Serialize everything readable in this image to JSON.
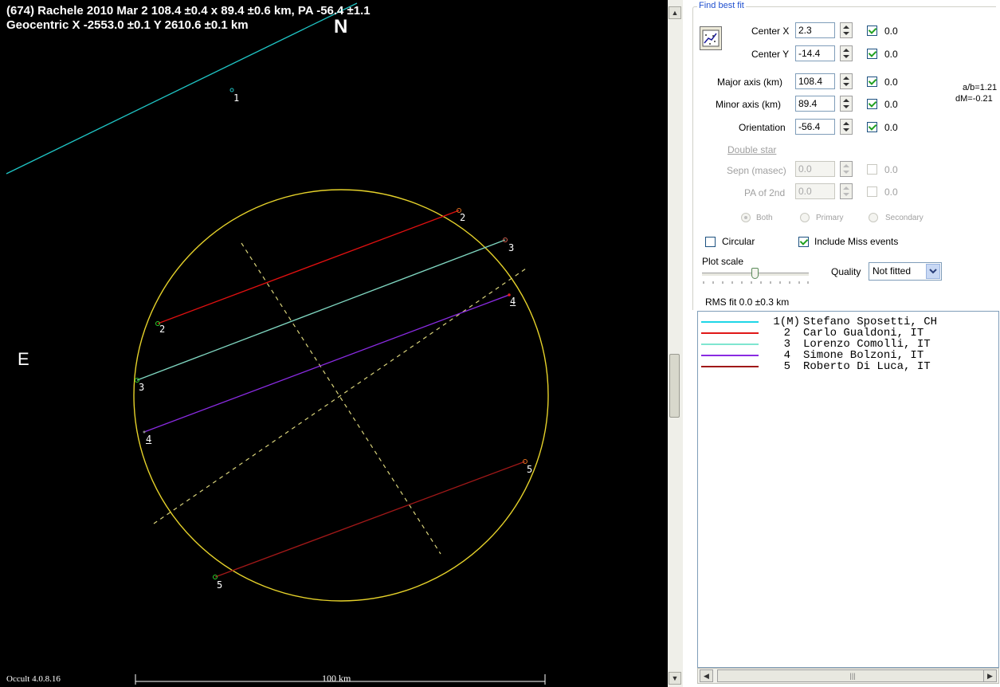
{
  "plot": {
    "title_line1": "(674) Rachele  2010 Mar 2   108.4 ±0.4 x 89.4 ±0.6 km, PA -56.4 ±1.1",
    "title_line2": "Geocentric X -2553.0 ±0.1  Y 2610.6 ±0.1 km",
    "north_label": "N",
    "east_label": "E",
    "version": "Occult 4.0.8.16",
    "scale_label": "100 km",
    "chords": [
      {
        "id": "1",
        "color": "#1fc4c4"
      },
      {
        "id": "2",
        "color": "#e01010"
      },
      {
        "id": "3",
        "color": "#7fd6c0"
      },
      {
        "id": "4",
        "color": "#8a2be2"
      },
      {
        "id": "5",
        "color": "#a01818"
      }
    ],
    "ellipse_color": "#e6d22a",
    "axis_color": "#d8d27a"
  },
  "panel": {
    "group_title": "Find best fit",
    "center_x": {
      "label": "Center X",
      "value": "2.3",
      "check_label": "0.0",
      "checked": true
    },
    "center_y": {
      "label": "Center Y",
      "value": "-14.4",
      "check_label": "0.0",
      "checked": true
    },
    "major_axis": {
      "label": "Major axis (km)",
      "value": "108.4",
      "check_label": "0.0",
      "checked": true
    },
    "minor_axis": {
      "label": "Minor axis (km)",
      "value": "89.4",
      "check_label": "0.0",
      "checked": true
    },
    "orientation": {
      "label": "Orientation",
      "value": "-56.4",
      "check_label": "0.0",
      "checked": true
    },
    "ab_ratio": "a/b=1.21",
    "dm": "dM=-0.21",
    "double_star": {
      "heading": "Double star",
      "sepn": {
        "label": "Sepn (masec)",
        "value": "0.0",
        "check_label": "0.0"
      },
      "pa2": {
        "label": "PA of 2nd",
        "value": "0.0",
        "check_label": "0.0"
      },
      "radio_both": "Both",
      "radio_primary": "Primary",
      "radio_secondary": "Secondary"
    },
    "circular_label": "Circular",
    "include_miss_label": "Include Miss events",
    "plot_scale_label": "Plot scale",
    "quality_label": "Quality",
    "quality_value": "Not fitted",
    "rms_fit": "RMS fit 0.0 ±0.3 km"
  },
  "legend": [
    {
      "num": "1(M)",
      "name": "Stefano Sposetti, CH",
      "color": "#1fd6e6"
    },
    {
      "num": "2",
      "name": "Carlo Gualdoni, IT",
      "color": "#e01818"
    },
    {
      "num": "3",
      "name": "Lorenzo Comolli, IT",
      "color": "#7fe6d0"
    },
    {
      "num": "4",
      "name": "Simone Bolzoni, IT",
      "color": "#8a2be2"
    },
    {
      "num": "5",
      "name": "Roberto Di Luca, IT",
      "color": "#a01818"
    }
  ]
}
